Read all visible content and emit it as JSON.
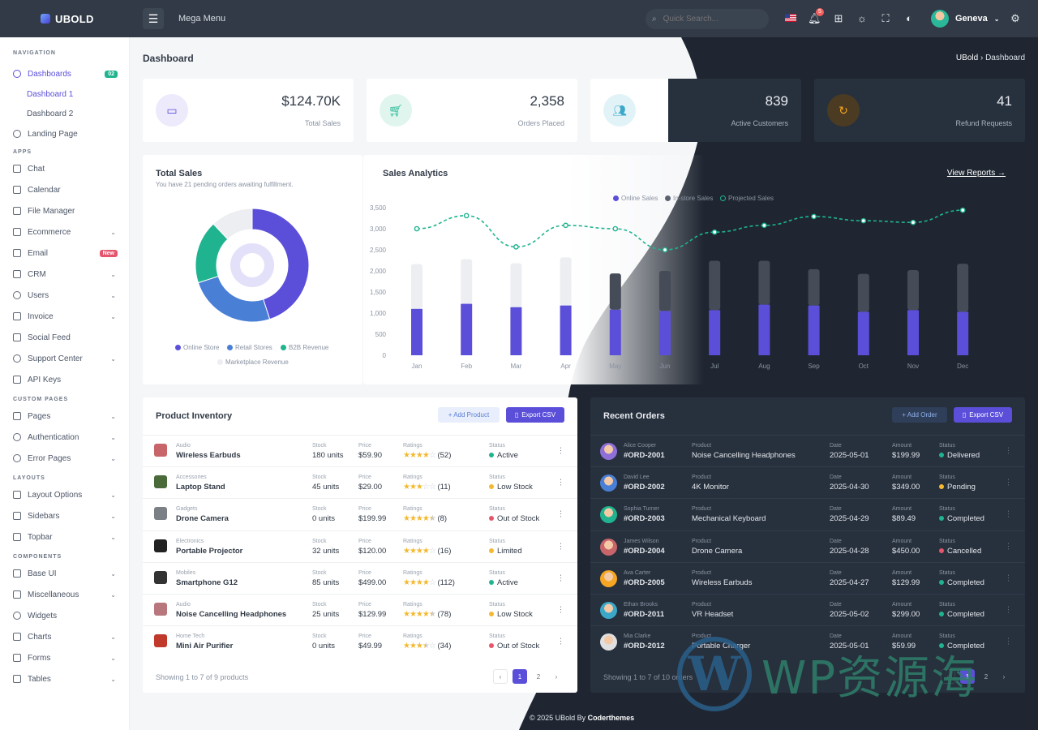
{
  "app": {
    "logo": "UBOLD",
    "mega_menu": "Mega Menu",
    "user": "Geneva",
    "notif_count": "5"
  },
  "search": {
    "placeholder": "Quick Search..."
  },
  "sidebar": {
    "sections": {
      "navigation": "NAVIGATION",
      "apps": "APPS",
      "custom": "CUSTOM PAGES",
      "layouts": "LAYOUTS",
      "components": "COMPONENTS"
    },
    "dashboards": "Dashboards",
    "dashboards_badge": "02",
    "dash1": "Dashboard 1",
    "dash2": "Dashboard 2",
    "landing": "Landing Page",
    "chat": "Chat",
    "calendar": "Calendar",
    "file_manager": "File Manager",
    "ecommerce": "Ecommerce",
    "email": "Email",
    "email_badge": "New",
    "crm": "CRM",
    "users": "Users",
    "invoice": "Invoice",
    "social": "Social Feed",
    "support": "Support Center",
    "api": "API Keys",
    "pages": "Pages",
    "auth": "Authentication",
    "errors": "Error Pages",
    "layout_options": "Layout Options",
    "sidebars": "Sidebars",
    "topbar": "Topbar",
    "base_ui": "Base UI",
    "misc": "Miscellaneous",
    "widgets": "Widgets",
    "charts": "Charts",
    "forms": "Forms",
    "tables": "Tables"
  },
  "page": {
    "title": "Dashboard",
    "crumb_root": "UBold",
    "crumb_current": "Dashboard"
  },
  "stats": [
    {
      "value": "$124.70K",
      "label": "Total Sales"
    },
    {
      "value": "2,358",
      "label": "Orders Placed"
    },
    {
      "value": "839",
      "label": "Active Customers"
    },
    {
      "value": "41",
      "label": "Refund Requests"
    }
  ],
  "total_sales": {
    "title": "Total Sales",
    "subtitle": "You have 21 pending orders awaiting fulfillment.",
    "legend": [
      "Online Store",
      "Retail Stores",
      "B2B Revenue",
      "Marketplace Revenue"
    ]
  },
  "analytics": {
    "title": "Sales Analytics",
    "view_reports": "View Reports →",
    "legend": [
      "Online Sales",
      "In-store Sales",
      "Projected Sales"
    ]
  },
  "inventory": {
    "title": "Product Inventory",
    "add": "+ Add Product",
    "export": "Export CSV",
    "headers": {
      "stock": "Stock",
      "price": "Price",
      "ratings": "Ratings",
      "status": "Status"
    },
    "rows": [
      {
        "cat": "Audio",
        "name": "Wireless Earbuds",
        "stock": "180 units",
        "price": "$59.90",
        "rating": 4,
        "count": "(52)",
        "status": "Active"
      },
      {
        "cat": "Accessories",
        "name": "Laptop Stand",
        "stock": "45 units",
        "price": "$29.00",
        "rating": 3,
        "count": "(11)",
        "status": "Low Stock"
      },
      {
        "cat": "Gadgets",
        "name": "Drone Camera",
        "stock": "0 units",
        "price": "$199.99",
        "rating": 4.5,
        "count": "(8)",
        "status": "Out of Stock"
      },
      {
        "cat": "Electronics",
        "name": "Portable Projector",
        "stock": "32 units",
        "price": "$120.00",
        "rating": 4,
        "count": "(16)",
        "status": "Limited"
      },
      {
        "cat": "Mobiles",
        "name": "Smartphone G12",
        "stock": "85 units",
        "price": "$499.00",
        "rating": 4,
        "count": "(112)",
        "status": "Active"
      },
      {
        "cat": "Audio",
        "name": "Noise Cancelling Headphones",
        "stock": "25 units",
        "price": "$129.99",
        "rating": 4.5,
        "count": "(78)",
        "status": "Low Stock"
      },
      {
        "cat": "Home Tech",
        "name": "Mini Air Purifier",
        "stock": "0 units",
        "price": "$49.99",
        "rating": 3.5,
        "count": "(34)",
        "status": "Out of Stock"
      }
    ],
    "showing": "Showing 1 to 7 of 9 products",
    "pages": [
      "1",
      "2"
    ]
  },
  "orders": {
    "title": "Recent Orders",
    "add": "+ Add Order",
    "export": "Export CSV",
    "headers": {
      "product": "Product",
      "date": "Date",
      "amount": "Amount",
      "status": "Status"
    },
    "rows": [
      {
        "customer": "Alice Cooper",
        "id": "#ORD-2001",
        "product": "Noise Cancelling Headphones",
        "date": "2025-05-01",
        "amount": "$199.99",
        "status": "Delivered"
      },
      {
        "customer": "David Lee",
        "id": "#ORD-2002",
        "product": "4K Monitor",
        "date": "2025-04-30",
        "amount": "$349.00",
        "status": "Pending"
      },
      {
        "customer": "Sophia Turner",
        "id": "#ORD-2003",
        "product": "Mechanical Keyboard",
        "date": "2025-04-29",
        "amount": "$89.49",
        "status": "Completed"
      },
      {
        "customer": "James Wilson",
        "id": "#ORD-2004",
        "product": "Drone Camera",
        "date": "2025-04-28",
        "amount": "$450.00",
        "status": "Cancelled"
      },
      {
        "customer": "Ava Carter",
        "id": "#ORD-2005",
        "product": "Wireless Earbuds",
        "date": "2025-04-27",
        "amount": "$129.99",
        "status": "Completed"
      },
      {
        "customer": "Ethan Brooks",
        "id": "#ORD-2011",
        "product": "VR Headset",
        "date": "2025-05-02",
        "amount": "$299.00",
        "status": "Completed"
      },
      {
        "customer": "Mia Clarke",
        "id": "#ORD-2012",
        "product": "Portable Charger",
        "date": "2025-05-01",
        "amount": "$59.99",
        "status": "Completed"
      }
    ],
    "showing": "Showing 1 to 7 of 10 orders",
    "pages": [
      "1",
      "2"
    ]
  },
  "footer": {
    "text": "© 2025 UBold By ",
    "brand": "Coderthemes"
  },
  "watermark": {
    "text": "WP资源海"
  },
  "colors": {
    "primary": "#5b4fd9",
    "teal": "#1fb48f",
    "blue": "#4a7fd6",
    "warning": "#f5b82e",
    "danger": "#e5566d",
    "dark_bg": "#1f2631",
    "dark_card": "#27303d"
  },
  "chart_data": [
    {
      "type": "pie",
      "title": "Total Sales",
      "categories": [
        "Online Store",
        "Retail Stores",
        "B2B Revenue",
        "Marketplace Revenue"
      ],
      "values": [
        45,
        25,
        18,
        12
      ]
    },
    {
      "type": "bar",
      "title": "Sales Analytics",
      "categories": [
        "Jan",
        "Feb",
        "Mar",
        "Apr",
        "May",
        "Jun",
        "Jul",
        "Aug",
        "Sep",
        "Oct",
        "Nov",
        "Dec"
      ],
      "ylim": [
        0,
        3500
      ],
      "yticks": [
        "0",
        "500",
        "1,000",
        "1,500",
        "2,000",
        "2,500",
        "3,000",
        "3,500"
      ],
      "series": [
        {
          "name": "Online Sales",
          "values": [
            1100,
            1220,
            1140,
            1180,
            1080,
            1050,
            1070,
            1200,
            1180,
            1030,
            1070,
            1030
          ]
        },
        {
          "name": "In-store Sales",
          "values": [
            1060,
            1060,
            1040,
            1140,
            860,
            950,
            1170,
            1040,
            860,
            900,
            950,
            1140
          ]
        },
        {
          "name": "Projected Sales",
          "values": [
            3000,
            3310,
            2570,
            3080,
            3000,
            2500,
            2920,
            3080,
            3290,
            3190,
            3150,
            3440
          ]
        }
      ]
    }
  ]
}
